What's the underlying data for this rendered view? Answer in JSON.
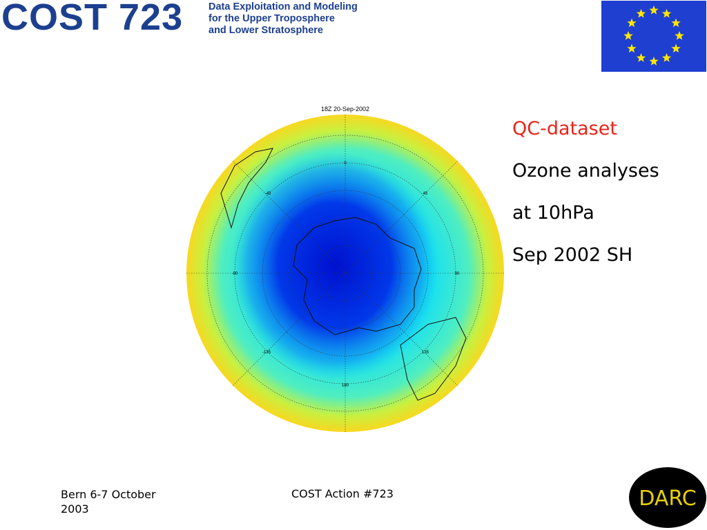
{
  "header": {
    "logo": "COST 723",
    "subtitle_lines": [
      "Data Exploitation and Modeling",
      "for the Upper Troposphere",
      "and Lower Stratosphere"
    ]
  },
  "map": {
    "title": "18Z 20-Sep-2002",
    "labels": {
      "top": "0",
      "left": "-90",
      "right": "90",
      "bottom": "180",
      "upper_left": "-45",
      "upper_right": "45",
      "lower_left": "-135",
      "lower_right": "135"
    }
  },
  "text": {
    "heading": "QC-dataset",
    "lines": [
      "Ozone analyses",
      "at 10hPa",
      "Sep 2002 SH"
    ]
  },
  "footer": {
    "left": "Bern 6-7 October 2003",
    "center": "COST Action #723",
    "logo": "DARC"
  }
}
